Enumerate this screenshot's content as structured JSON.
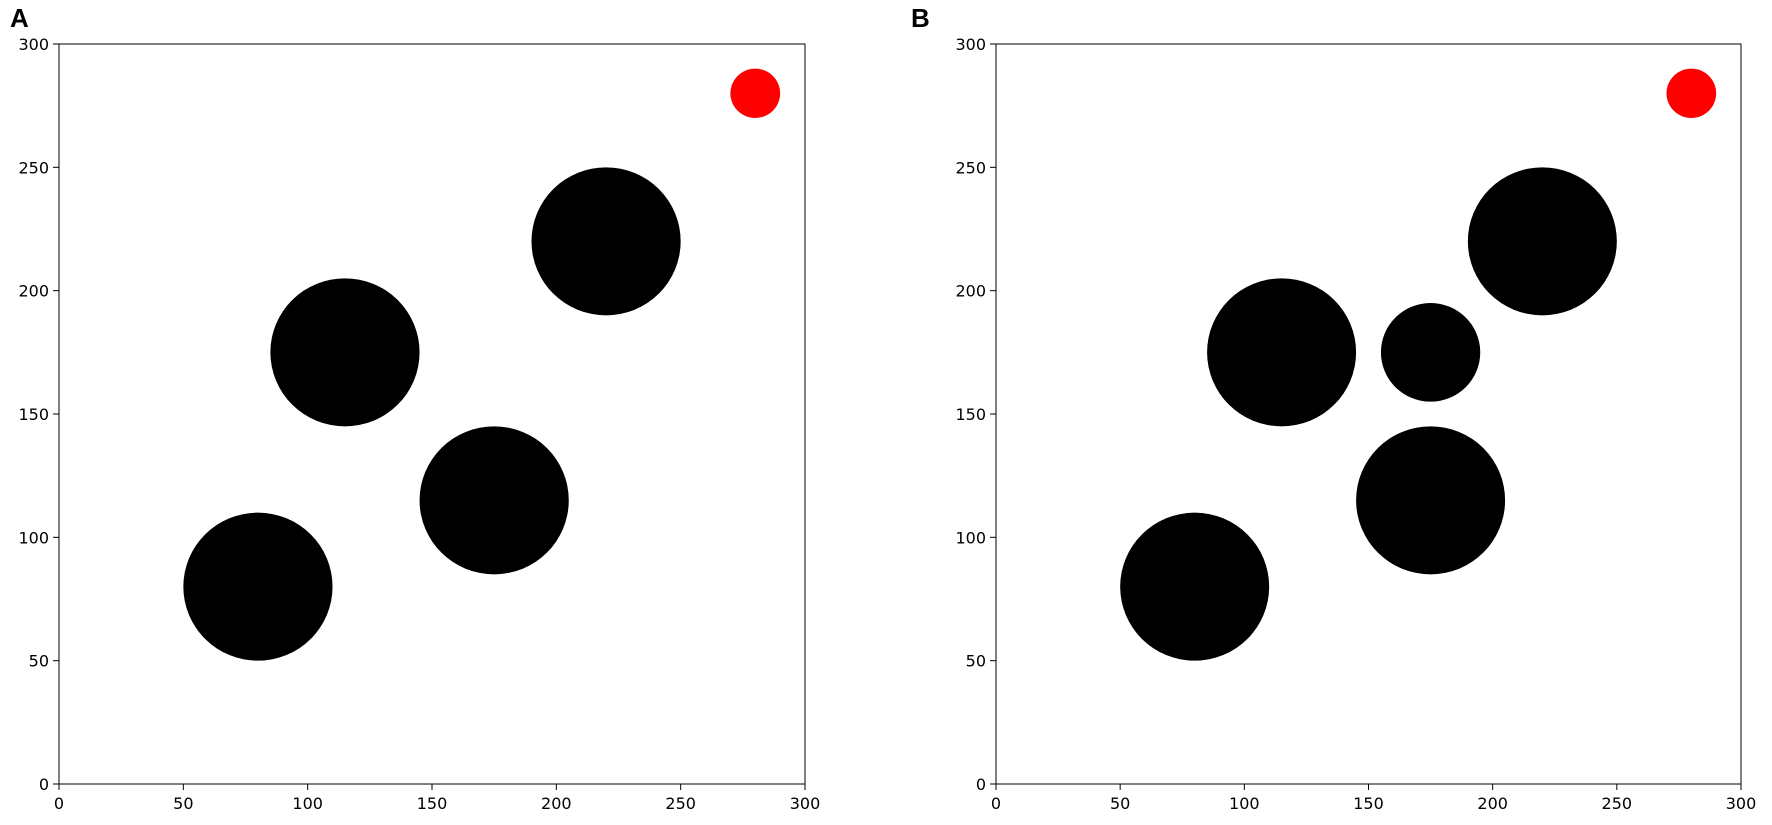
{
  "chart_data": [
    {
      "type": "scatter",
      "title": "A",
      "xlim": [
        0,
        300
      ],
      "ylim": [
        0,
        300
      ],
      "xticks": [
        0,
        50,
        100,
        150,
        200,
        250,
        300
      ],
      "yticks": [
        0,
        50,
        100,
        150,
        200,
        250,
        300
      ],
      "series": [
        {
          "color": "#000000",
          "x": [
            80,
            115,
            175,
            220
          ],
          "values": [
            80,
            175,
            115,
            220
          ],
          "sizes": [
            30,
            30,
            30,
            30
          ]
        },
        {
          "color": "#ff0000",
          "x": [
            280
          ],
          "values": [
            280
          ],
          "sizes": [
            10
          ]
        }
      ]
    },
    {
      "type": "scatter",
      "title": "B",
      "xlim": [
        0,
        300
      ],
      "ylim": [
        0,
        300
      ],
      "xticks": [
        0,
        50,
        100,
        150,
        200,
        250,
        300
      ],
      "yticks": [
        0,
        50,
        100,
        150,
        200,
        250,
        300
      ],
      "series": [
        {
          "color": "#000000",
          "x": [
            80,
            115,
            175,
            175,
            220
          ],
          "values": [
            80,
            175,
            115,
            175,
            220
          ],
          "sizes": [
            30,
            30,
            30,
            20,
            30
          ]
        },
        {
          "color": "#ff0000",
          "x": [
            280
          ],
          "values": [
            280
          ],
          "sizes": [
            10
          ]
        }
      ]
    }
  ]
}
